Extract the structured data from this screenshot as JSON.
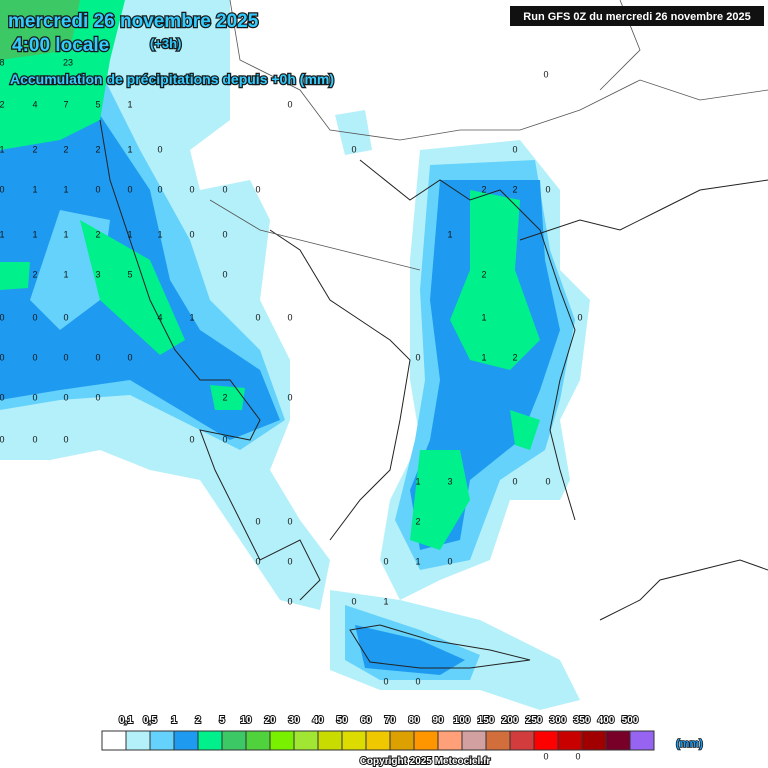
{
  "header": {
    "date": "mercredi 26 novembre 2025",
    "time": "4:00 locale",
    "offset": "(+3h)",
    "subtitle": "Accumulation de précipitations depuis +0h (mm)",
    "run": "Run GFS 0Z du mercredi 26 novembre 2025"
  },
  "map_labels": [
    8,
    23,
    2,
    4,
    7,
    5,
    1,
    0,
    1,
    2,
    2,
    2,
    1,
    0,
    0,
    0,
    0,
    1,
    1,
    0,
    0,
    0,
    0,
    0,
    0,
    2,
    2,
    0,
    1,
    1,
    1,
    2,
    1,
    1,
    0,
    0,
    1,
    2,
    1,
    3,
    5,
    0,
    2,
    0,
    0,
    0,
    4,
    1,
    0,
    0,
    1,
    0,
    0,
    0,
    0,
    0,
    0,
    2,
    1,
    0,
    0,
    0,
    0,
    0,
    2,
    0,
    0,
    0,
    0,
    0,
    0,
    3,
    1,
    0,
    0,
    2,
    0,
    0,
    0,
    0,
    1,
    0,
    0,
    0,
    0,
    1,
    0,
    0,
    0,
    0,
    0
  ],
  "legend": {
    "unit": "(mm)",
    "colors": [
      "#ffffff",
      "#b4f0fa",
      "#64d2fa",
      "#1e9bf0",
      "#00f08c",
      "#3cc864",
      "#50d23c",
      "#78f000",
      "#a0e632",
      "#c8dc00",
      "#dcdc00",
      "#f0c800",
      "#dca000",
      "#ff9600",
      "#ffa078",
      "#d2a0a0",
      "#d26e3c",
      "#d23c3c",
      "#ff0000",
      "#c80000",
      "#a00000",
      "#780028",
      "#9664f0"
    ],
    "labels": [
      "0,1",
      "0,5",
      "1",
      "2",
      "5",
      "10",
      "20",
      "30",
      "40",
      "50",
      "60",
      "70",
      "80",
      "90",
      "100",
      "150",
      "200",
      "250",
      "300",
      "350",
      "400",
      "500"
    ]
  },
  "copyright": "Copyright 2025 Meteociel.fr"
}
